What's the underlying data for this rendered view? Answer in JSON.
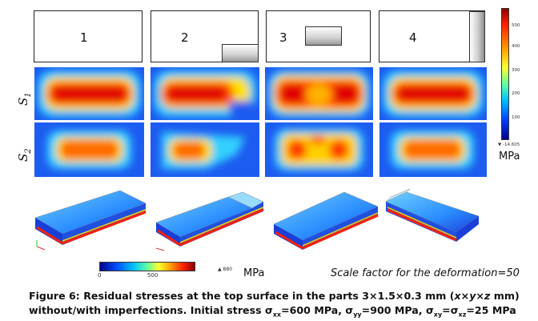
{
  "panels": [
    {
      "label": "1",
      "imperfection": "none"
    },
    {
      "label": "2",
      "imperfection": "corner-bottom-right"
    },
    {
      "label": "3",
      "imperfection": "top-center"
    },
    {
      "label": "4",
      "imperfection": "right-edge"
    }
  ],
  "rows": {
    "s1_label": "S",
    "s1_sub": "1",
    "s2_label": "S",
    "s2_sub": "2"
  },
  "colorbar_right": {
    "ticks": [
      "500",
      "400",
      "300",
      "200",
      "100"
    ],
    "min_label": "▼ -14.605",
    "unit": "MPa",
    "colors": [
      "#8b0000",
      "#ff2000",
      "#ff9a00",
      "#ffff30",
      "#60ffa0",
      "#00c0ff",
      "#0040ff",
      "#00008b"
    ]
  },
  "colorbar_bottom": {
    "ticks": [
      "0",
      "500"
    ],
    "max_label": "▲ 880",
    "unit": "MPa"
  },
  "scale_note": "Scale factor for the deformation=50",
  "caption": {
    "prefix": "Figure 6: Residual stresses at the top surface in the parts 3×1.5×0.3 mm (",
    "dims": "x×y×z",
    "unit": " mm)",
    "line2_start": "without/with imperfections. Initial stress σ",
    "sxx_sub": "xx",
    "sxx_val": "=600 MPa, σ",
    "syy_sub": "yy",
    "syy_val": "=900 MPa, σ",
    "sxy_sub": "xy",
    "eq": "=σ",
    "sxz_sub": "xz",
    "sxz_val": "=25 MPa"
  }
}
